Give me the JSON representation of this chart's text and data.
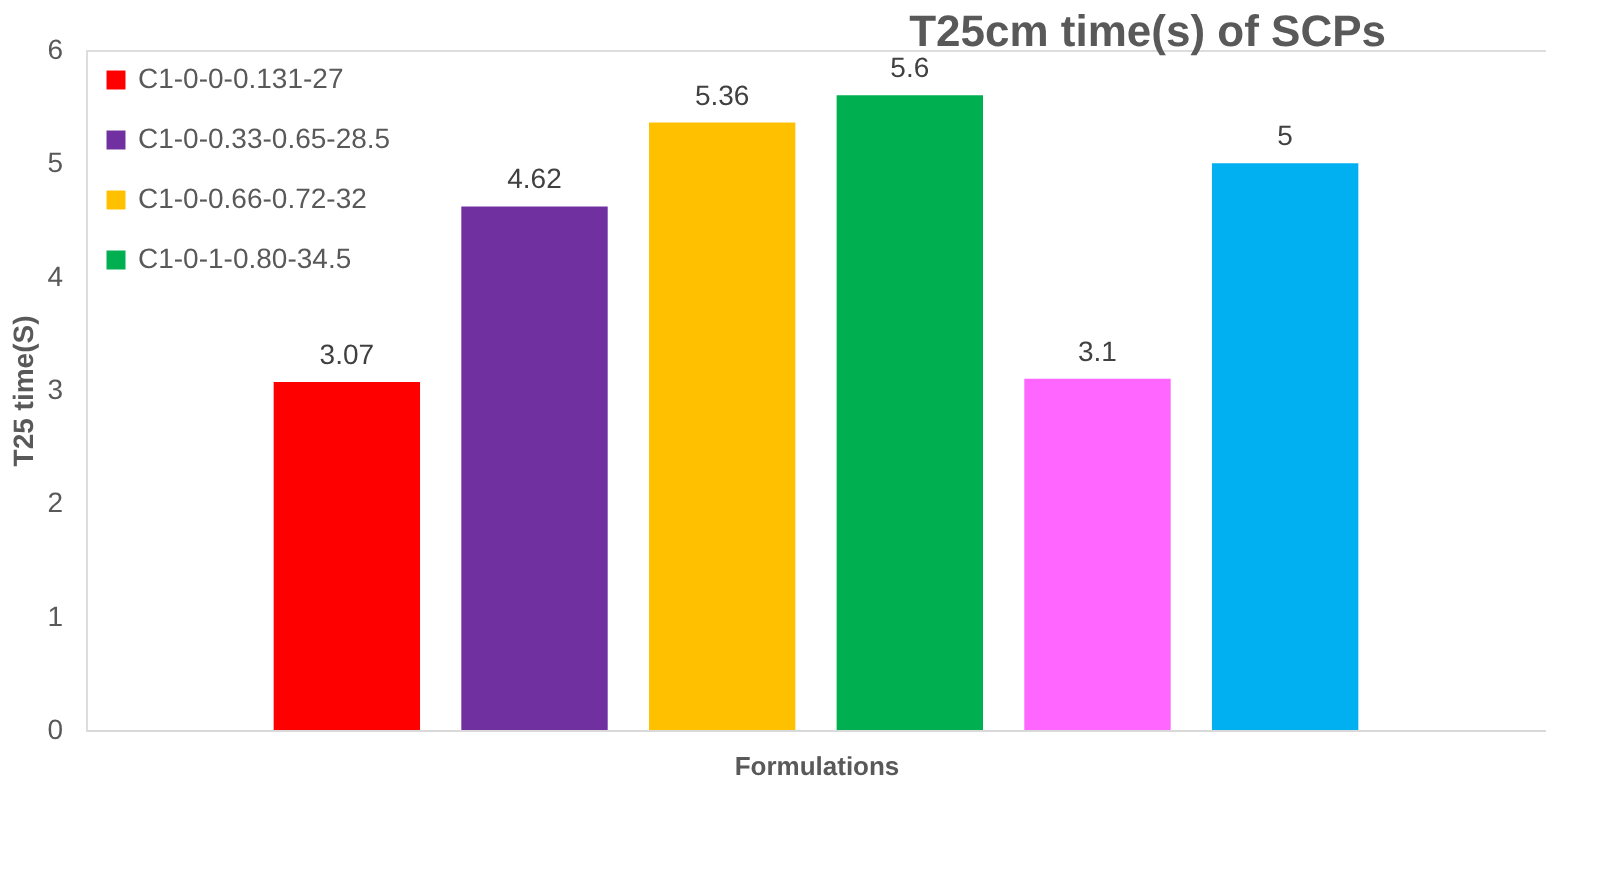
{
  "chart_data": {
    "type": "bar",
    "title": "T25cm time(s) of SCPs",
    "xlabel": "Formulations",
    "ylabel": "T25 time(S)",
    "categories": [
      null,
      null,
      null,
      null,
      null,
      null
    ],
    "stacked": true,
    "series": [
      {
        "name": "C1-0-0-0.131-27",
        "color": "#ff0000",
        "values": [
          3.07,
          null,
          null,
          null,
          null,
          null
        ]
      },
      {
        "name": "C1-0-0.33-0.65-28.5",
        "color": "#7030a0",
        "values": [
          null,
          4.62,
          null,
          null,
          null,
          null
        ]
      },
      {
        "name": "C1-0-0.66-0.72-32",
        "color": "#ffc000",
        "values": [
          null,
          null,
          5.36,
          null,
          null,
          null
        ]
      },
      {
        "name": "C1-0-1-0.80-34.5",
        "color": "#00b050",
        "values": [
          null,
          null,
          null,
          5.6,
          null,
          null
        ]
      },
      {
        "color": "#ff66ff",
        "values": [
          null,
          null,
          null,
          null,
          3.1,
          null
        ]
      },
      {
        "color": "#00b0f0",
        "values": [
          null,
          null,
          null,
          null,
          null,
          5
        ]
      }
    ],
    "ylim": [
      0,
      6
    ],
    "yticks": [
      0,
      1,
      2,
      3,
      4,
      5,
      6
    ],
    "grid": false,
    "legend": "top left",
    "data_labels": true
  }
}
